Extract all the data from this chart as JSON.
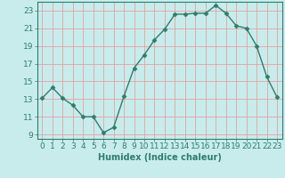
{
  "x": [
    0,
    1,
    2,
    3,
    4,
    5,
    6,
    7,
    8,
    9,
    10,
    11,
    12,
    13,
    14,
    15,
    16,
    17,
    18,
    19,
    20,
    21,
    22,
    23
  ],
  "y": [
    13.1,
    14.3,
    13.1,
    12.3,
    11.0,
    11.0,
    9.2,
    9.8,
    13.3,
    16.5,
    18.0,
    19.7,
    20.9,
    22.6,
    22.6,
    22.7,
    22.7,
    23.6,
    22.7,
    21.3,
    21.0,
    19.0,
    15.5,
    13.2
  ],
  "line_color": "#2e7d6e",
  "marker": "D",
  "marker_size": 2.5,
  "line_width": 1.0,
  "bg_color": "#c8ecec",
  "grid_color": "#e8a0a0",
  "xlabel": "Humidex (Indice chaleur)",
  "xlabel_fontsize": 7,
  "tick_fontsize": 6.5,
  "ylim": [
    8.5,
    24.0
  ],
  "yticks": [
    9,
    11,
    13,
    15,
    17,
    19,
    21,
    23
  ],
  "xticks": [
    0,
    1,
    2,
    3,
    4,
    5,
    6,
    7,
    8,
    9,
    10,
    11,
    12,
    13,
    14,
    15,
    16,
    17,
    18,
    19,
    20,
    21,
    22,
    23
  ],
  "xlim": [
    -0.5,
    23.5
  ]
}
